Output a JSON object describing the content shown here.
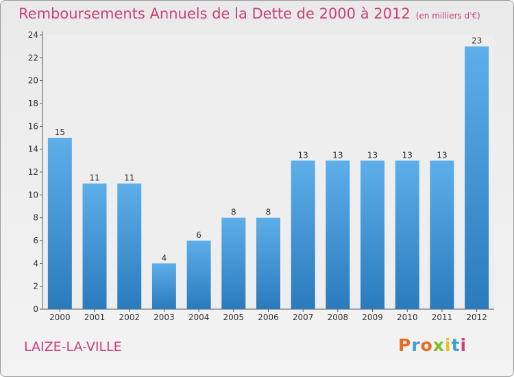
{
  "title": "Remboursements Annuels de la Dette de 2000 à 2012",
  "subtitle": "(en milliers d'€)",
  "commune": "LAIZE-LA-VILLE",
  "logo": {
    "text": "Proxiti",
    "colors": [
      "#e96b20",
      "#3aa0d8",
      "#e96b20",
      "#7bbf2c",
      "#e6c21e",
      "#3aa0d8",
      "#c9407a"
    ]
  },
  "colors": {
    "bar": "#3d8fd1",
    "title": "#c9407a"
  },
  "chart_data": {
    "type": "bar",
    "categories": [
      "2000",
      "2001",
      "2002",
      "2003",
      "2004",
      "2005",
      "2006",
      "2007",
      "2008",
      "2009",
      "2010",
      "2011",
      "2012"
    ],
    "values": [
      15,
      11,
      11,
      4,
      6,
      8,
      8,
      13,
      13,
      13,
      13,
      13,
      23
    ],
    "ylim": [
      0,
      24
    ],
    "yticks": [
      0,
      2,
      4,
      6,
      8,
      10,
      12,
      14,
      16,
      18,
      20,
      22,
      24
    ],
    "grid": false
  }
}
